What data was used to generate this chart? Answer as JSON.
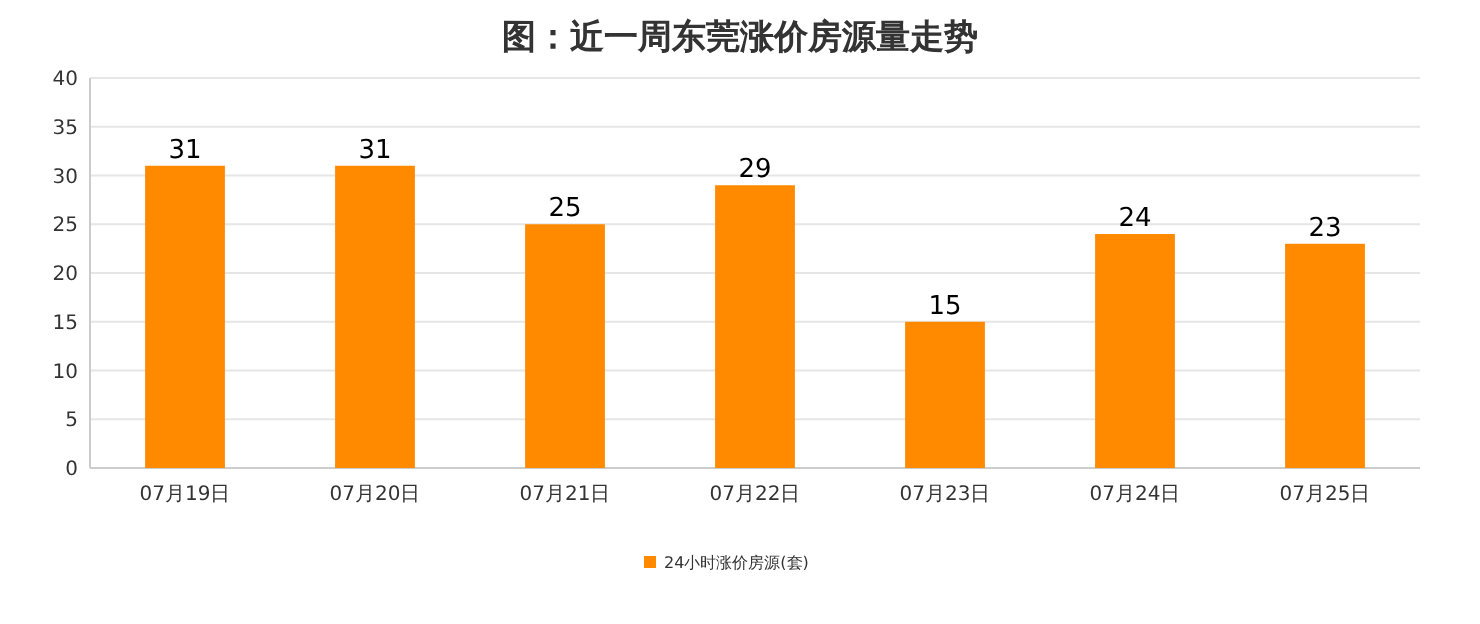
{
  "chart_data": {
    "type": "bar",
    "title": "图：近一周东莞涨价房源量走势",
    "categories": [
      "07月19日",
      "07月20日",
      "07月21日",
      "07月22日",
      "07月23日",
      "07月24日",
      "07月25日"
    ],
    "series": [
      {
        "name": "24小时涨价房源(套)",
        "color": "#ff8a00",
        "values": [
          31,
          31,
          25,
          29,
          15,
          24,
          23
        ]
      }
    ],
    "ylim": [
      0,
      40
    ],
    "yticks": [
      0,
      5,
      10,
      15,
      20,
      25,
      30,
      35,
      40
    ],
    "grid": "y",
    "legend": "bottom",
    "data_labels": true
  }
}
